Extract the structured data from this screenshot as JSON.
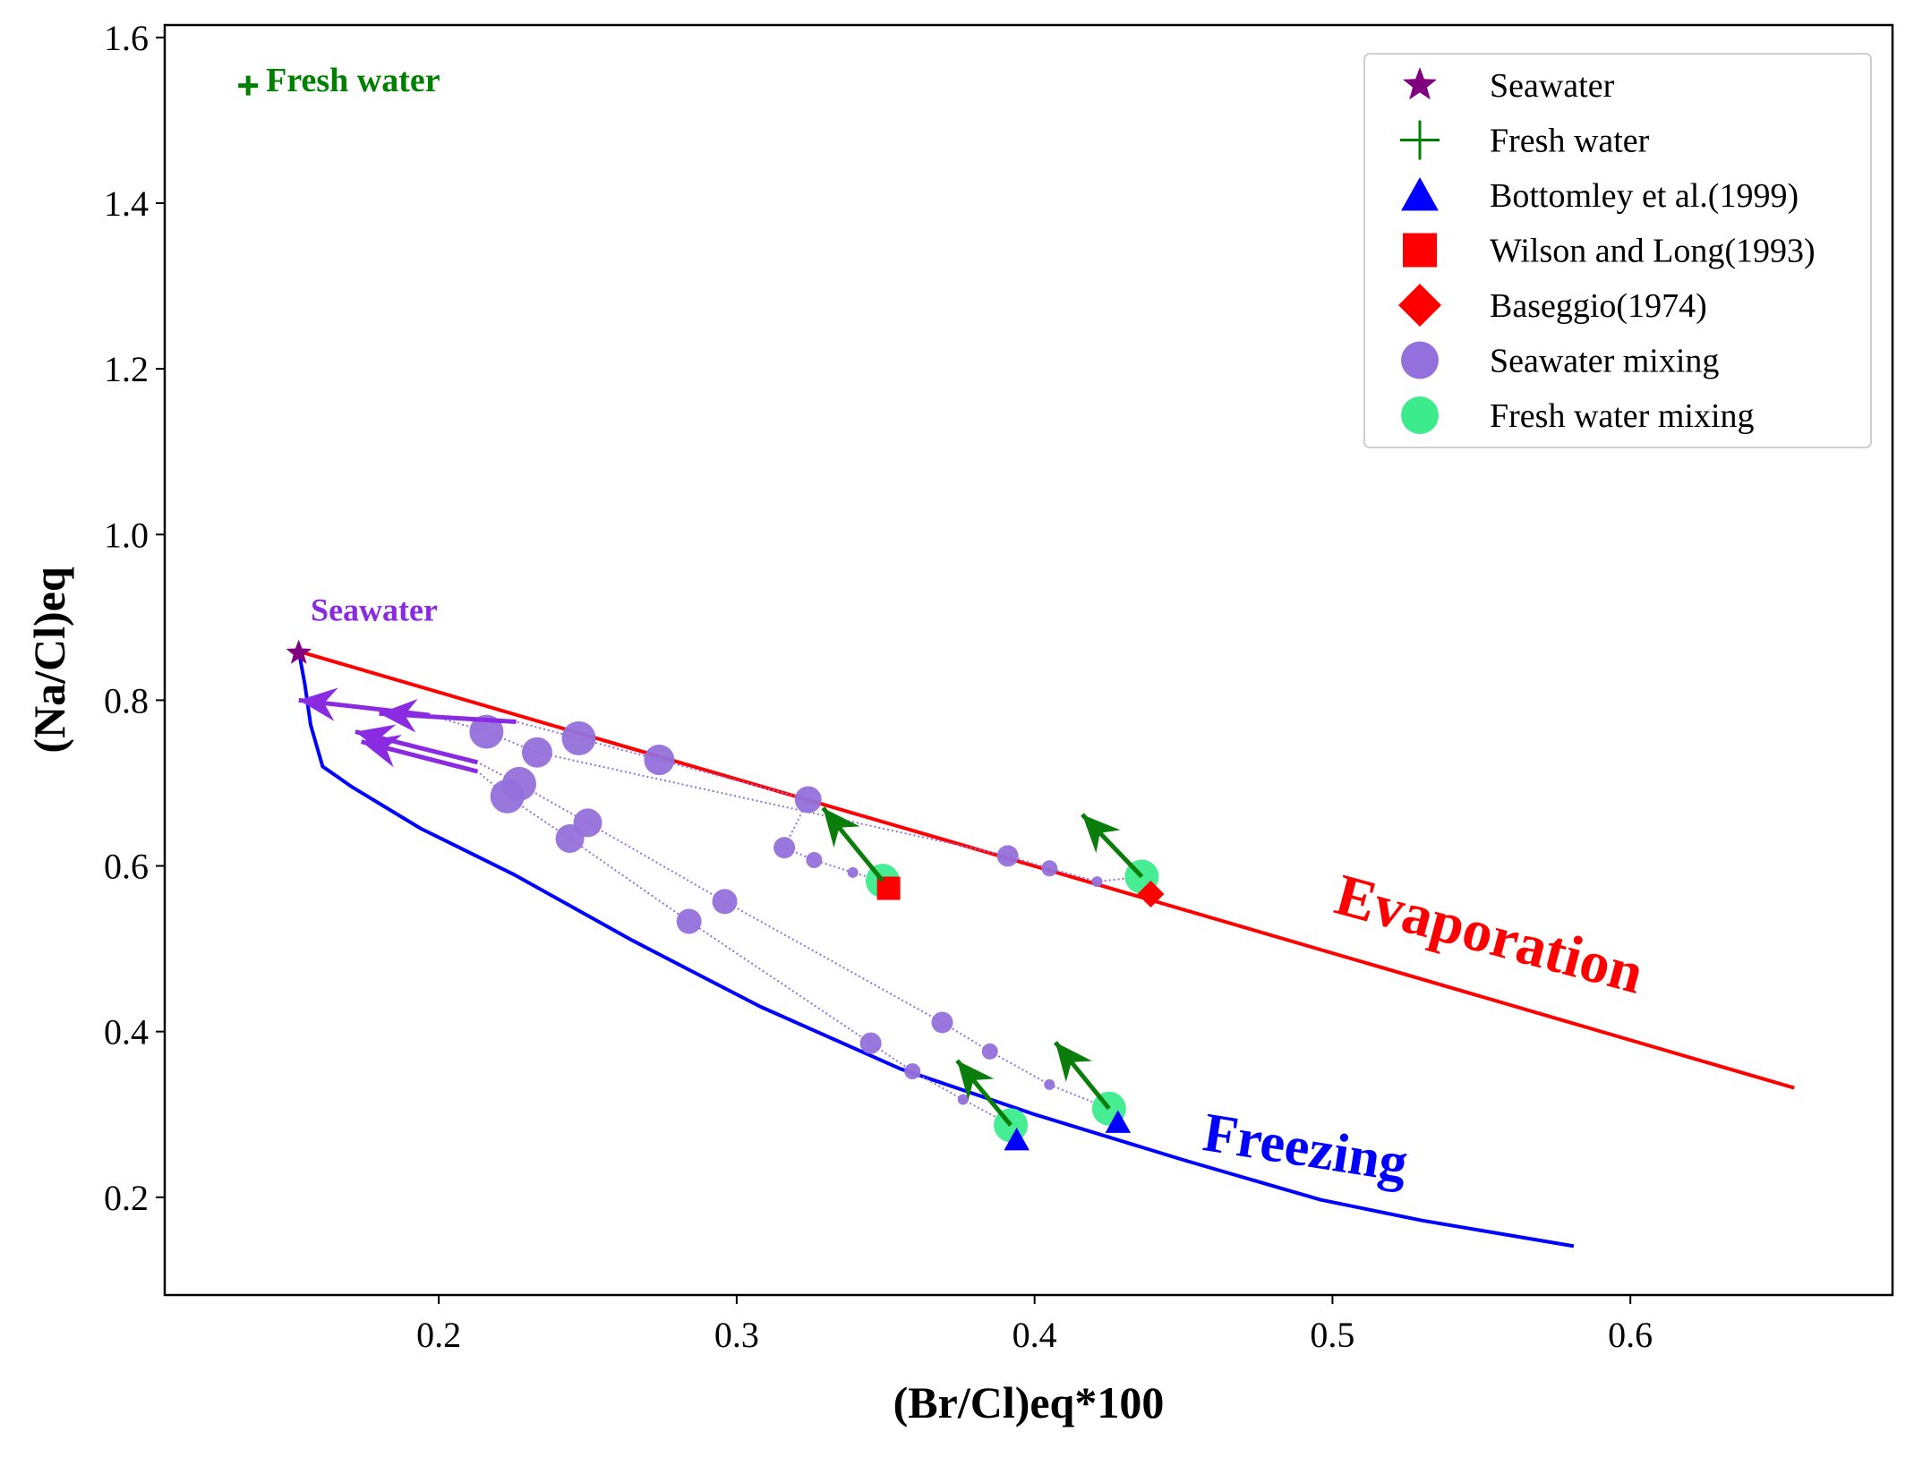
{
  "chart_data": {
    "type": "scatter",
    "xlabel": "(Br/Cl)eq*100",
    "ylabel": "(Na/Cl)eq",
    "xlim": [
      0.108,
      0.688
    ],
    "ylim": [
      0.082,
      1.615
    ],
    "xticks": [
      0.2,
      0.3,
      0.4,
      0.5,
      0.6
    ],
    "xtick_labels": [
      "0.2",
      "0.3",
      "0.4",
      "0.5",
      "0.6"
    ],
    "yticks": [
      0.2,
      0.4,
      0.6,
      0.8,
      1.0,
      1.2,
      1.4,
      1.6
    ],
    "ytick_labels": [
      "0.2",
      "0.4",
      "0.6",
      "0.8",
      "1.0",
      "1.2",
      "1.4",
      "1.6"
    ],
    "grid": false,
    "legend_position": "top-right",
    "legend": [
      {
        "label": "Seawater",
        "marker": "star",
        "color": "#800080"
      },
      {
        "label": "Fresh water",
        "marker": "plus",
        "color": "#008000"
      },
      {
        "label": "Bottomley et al.(1999)",
        "marker": "triangle",
        "color": "#0000ff"
      },
      {
        "label": "Wilson and Long(1993)",
        "marker": "square",
        "color": "#ff0000"
      },
      {
        "label": "Baseggio(1974)",
        "marker": "diamond",
        "color": "#ff0000"
      },
      {
        "label": "Seawater mixing",
        "marker": "circle",
        "color": "#9370db"
      },
      {
        "label": "Fresh water mixing",
        "marker": "circle",
        "color": "#3cec8c"
      }
    ],
    "annotations": [
      {
        "text": "Fresh water",
        "x": 0.142,
        "y": 1.535,
        "color": "#008000"
      },
      {
        "text": "Seawater",
        "x": 0.157,
        "y": 0.896,
        "color": "#8a2be2"
      },
      {
        "text": "Evaporation",
        "x": 0.551,
        "y": 0.495,
        "color": "#ff0000"
      },
      {
        "text": "Freezing",
        "x": 0.49,
        "y": 0.238,
        "color": "#0000ff"
      }
    ],
    "evaporation_line": {
      "color": "#ff0000",
      "x": [
        0.153,
        0.655
      ],
      "y": [
        0.859,
        0.332
      ]
    },
    "freezing_line": {
      "color": "#0000ff",
      "x": [
        0.153,
        0.155,
        0.157,
        0.161,
        0.171,
        0.194,
        0.225,
        0.265,
        0.308,
        0.355,
        0.4,
        0.45,
        0.496,
        0.53,
        0.581
      ],
      "y": [
        0.859,
        0.82,
        0.77,
        0.72,
        0.695,
        0.645,
        0.59,
        0.51,
        0.43,
        0.355,
        0.3,
        0.245,
        0.197,
        0.172,
        0.141
      ]
    },
    "seawater_point": {
      "x": 0.153,
      "y": 0.857
    },
    "fresh_water_point": {
      "x": 0.136,
      "y": 1.542
    },
    "bottomley_1999": [
      {
        "x": 0.394,
        "y": 0.268
      },
      {
        "x": 0.428,
        "y": 0.289
      }
    ],
    "wilson_long_1993": [
      {
        "x": 0.351,
        "y": 0.573
      }
    ],
    "baseggio_1974": [
      {
        "x": 0.439,
        "y": 0.566
      }
    ],
    "mixing_series": [
      {
        "target": "Wilson and Long(1993)",
        "seawater_mixing": [
          {
            "x": 0.339,
            "y": 0.592,
            "size": 6
          },
          {
            "x": 0.326,
            "y": 0.607,
            "size": 9
          },
          {
            "x": 0.316,
            "y": 0.622,
            "size": 12
          },
          {
            "x": 0.324,
            "y": 0.68,
            "size": 15
          },
          {
            "x": 0.274,
            "y": 0.728,
            "size": 17
          },
          {
            "x": 0.247,
            "y": 0.754,
            "size": 19
          }
        ],
        "fresh_water_mixing": [
          {
            "x": 0.349,
            "y": 0.582,
            "size": 19
          }
        ],
        "seawater_arrow": {
          "from": [
            0.226,
            0.774
          ],
          "to": [
            0.18,
            0.784
          ]
        },
        "fresh_arrow": {
          "from": [
            0.349,
            0.582
          ],
          "to": [
            0.329,
            0.67
          ]
        }
      },
      {
        "target": "Baseggio(1974)",
        "seawater_mixing": [
          {
            "x": 0.421,
            "y": 0.581,
            "size": 6
          },
          {
            "x": 0.405,
            "y": 0.597,
            "size": 9
          },
          {
            "x": 0.391,
            "y": 0.612,
            "size": 12
          },
          {
            "x": 0.233,
            "y": 0.737,
            "size": 17
          },
          {
            "x": 0.216,
            "y": 0.762,
            "size": 19
          }
        ],
        "fresh_water_mixing": [
          {
            "x": 0.436,
            "y": 0.587,
            "size": 19
          }
        ],
        "seawater_arrow": {
          "from": [
            0.197,
            0.782
          ],
          "to": [
            0.153,
            0.8
          ]
        },
        "fresh_arrow": {
          "from": [
            0.436,
            0.587
          ],
          "to": [
            0.416,
            0.662
          ]
        }
      },
      {
        "target": "Bottomley et al.(1999) #1",
        "seawater_mixing": [
          {
            "x": 0.376,
            "y": 0.318,
            "size": 6
          },
          {
            "x": 0.359,
            "y": 0.352,
            "size": 9
          },
          {
            "x": 0.345,
            "y": 0.386,
            "size": 12
          },
          {
            "x": 0.284,
            "y": 0.533,
            "size": 14
          },
          {
            "x": 0.244,
            "y": 0.633,
            "size": 16
          },
          {
            "x": 0.223,
            "y": 0.684,
            "size": 19
          }
        ],
        "fresh_water_mixing": [
          {
            "x": 0.392,
            "y": 0.287,
            "size": 19
          }
        ],
        "seawater_arrow": {
          "from": [
            0.213,
            0.714
          ],
          "to": [
            0.174,
            0.75
          ]
        },
        "fresh_arrow": {
          "from": [
            0.392,
            0.287
          ],
          "to": [
            0.374,
            0.365
          ]
        }
      },
      {
        "target": "Bottomley et al.(1999) #2",
        "seawater_mixing": [
          {
            "x": 0.405,
            "y": 0.336,
            "size": 6
          },
          {
            "x": 0.385,
            "y": 0.376,
            "size": 9
          },
          {
            "x": 0.369,
            "y": 0.411,
            "size": 12
          },
          {
            "x": 0.296,
            "y": 0.557,
            "size": 14
          },
          {
            "x": 0.25,
            "y": 0.652,
            "size": 16
          },
          {
            "x": 0.227,
            "y": 0.699,
            "size": 19
          }
        ],
        "fresh_water_mixing": [
          {
            "x": 0.425,
            "y": 0.307,
            "size": 19
          }
        ],
        "seawater_arrow": {
          "from": [
            0.213,
            0.725
          ],
          "to": [
            0.172,
            0.762
          ]
        },
        "fresh_arrow": {
          "from": [
            0.425,
            0.307
          ],
          "to": [
            0.407,
            0.387
          ]
        }
      }
    ]
  }
}
